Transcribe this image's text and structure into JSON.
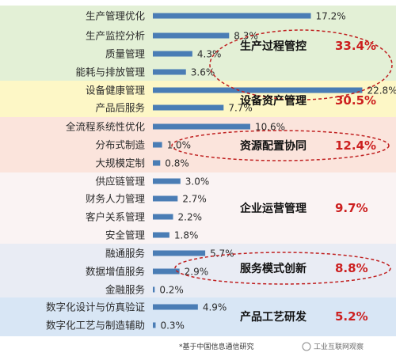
{
  "chart_data": {
    "type": "bar",
    "orientation": "horizontal",
    "categories": [
      "生产管理优化",
      "生产监控分析",
      "质量管理",
      "能耗与排放管理",
      "设备健康管理",
      "产品后服务",
      "全流程系统性优化",
      "分布式制造",
      "大规模定制",
      "供应链管理",
      "财务人力管理",
      "客户关系管理",
      "安全管理",
      "融通服务",
      "数据增值服务",
      "金融服务",
      "数字化设计与仿真验证",
      "数字化工艺与制造辅助"
    ],
    "values": [
      17.2,
      8.3,
      4.3,
      3.6,
      22.8,
      7.7,
      10.6,
      1.0,
      0.8,
      3.0,
      2.7,
      2.2,
      1.8,
      5.7,
      2.9,
      0.2,
      4.9,
      0.3
    ],
    "value_labels": [
      "17.2%",
      "8.3%",
      "4.3%",
      "3.6%",
      "22.8%",
      "7.7%",
      "10.6%",
      "1.0%",
      "0.8%",
      "3.0%",
      "2.7%",
      "2.2%",
      "1.8%",
      "5.7%",
      "2.9%",
      "0.2%",
      "4.9%",
      "0.3%"
    ],
    "xlim": [
      0,
      25
    ],
    "bar_color": "#4a7db5",
    "groups": [
      {
        "name": "生产过程管控",
        "percent": "33.4%",
        "count": 4,
        "color": "#e3f0d6"
      },
      {
        "name": "设备资产管理",
        "percent": "30.5%",
        "count": 2,
        "color": "#fdf7c6"
      },
      {
        "name": "资源配置协同",
        "percent": "12.4%",
        "count": 3,
        "color": "#fbe4dc"
      },
      {
        "name": "企业运营管理",
        "percent": "9.7%",
        "count": 4,
        "color": "#faf3f3"
      },
      {
        "name": "服务模式创新",
        "percent": "8.8%",
        "count": 3,
        "color": "#e9ecf4"
      },
      {
        "name": "产品工艺研发",
        "percent": "5.2%",
        "count": 2,
        "color": "#d8e6f5"
      }
    ],
    "highlight_color": "#c02020"
  },
  "footer": {
    "note": "*基于中国信息通信研究",
    "watermark": "工业互联网观察"
  }
}
